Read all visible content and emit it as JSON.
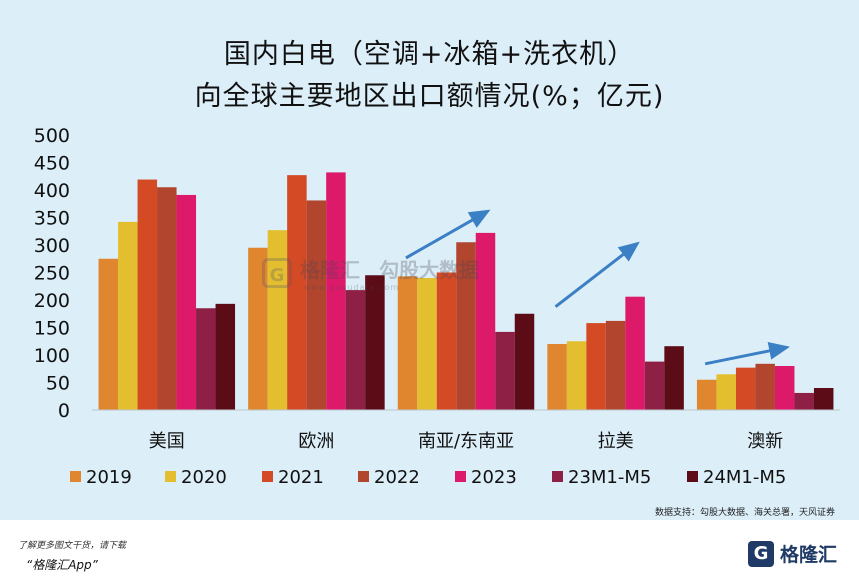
{
  "chart_data": {
    "type": "bar",
    "title_line1": "国内白电（空调+冰箱+洗衣机）",
    "title_line2": "向全球主要地区出口额情况(%；亿元)",
    "categories": [
      "美国",
      "欧洲",
      "南亚/东南亚",
      "拉美",
      "澳新"
    ],
    "series": [
      {
        "name": "2019",
        "color": "#e0862e",
        "values": [
          275,
          295,
          243,
          120,
          55
        ]
      },
      {
        "name": "2020",
        "color": "#e3bf2f",
        "values": [
          342,
          327,
          240,
          125,
          65
        ]
      },
      {
        "name": "2021",
        "color": "#d44a25",
        "values": [
          419,
          427,
          250,
          158,
          77
        ]
      },
      {
        "name": "2022",
        "color": "#b2452e",
        "values": [
          405,
          381,
          305,
          162,
          84
        ]
      },
      {
        "name": "2023",
        "color": "#dd1a6a",
        "values": [
          391,
          432,
          322,
          206,
          80
        ]
      },
      {
        "name": "23M1-M5",
        "color": "#8e1f45",
        "values": [
          185,
          218,
          142,
          88,
          31
        ]
      },
      {
        "name": "24M1-M5",
        "color": "#5c0c16",
        "values": [
          193,
          245,
          175,
          116,
          40
        ]
      }
    ],
    "ylim": [
      0,
      500
    ],
    "yticks": [
      0,
      50,
      100,
      150,
      200,
      250,
      300,
      350,
      400,
      450,
      500
    ],
    "grid": false,
    "legend": "bottom",
    "annotations": [
      "upward-trend-arrow",
      "upward-trend-arrow",
      "upward-trend-arrow"
    ]
  },
  "source_note": "数据支持：勾股大数据、海关总署，天风证券",
  "watermark": {
    "brand": "格隆汇",
    "product": "勾股大数据",
    "url": "www.gogudata.com"
  },
  "footer": {
    "line1": "了解更多图文干货，请下载",
    "line2": "“格隆汇App”",
    "logo_text": "格隆汇",
    "logo_icon": "G"
  }
}
